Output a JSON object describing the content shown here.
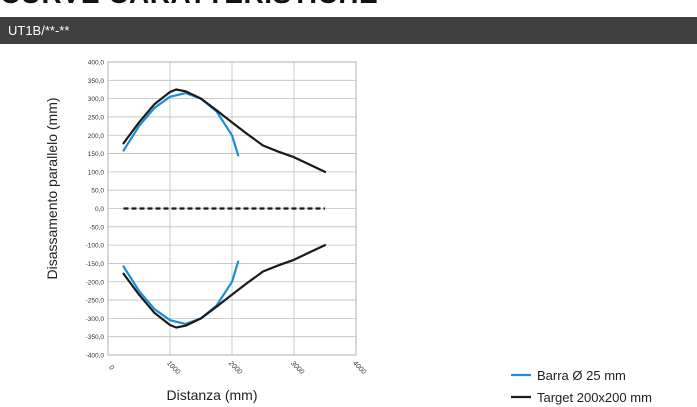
{
  "page_heading": "CURVE CARATTERISTICHE",
  "section_title": "UT1B/**-**",
  "colors": {
    "bar": "#3f3f3f",
    "series_rod": "#1a8fd1",
    "series_target": "#1a1a1a",
    "grid": "#bfbfbf"
  },
  "chart_data": {
    "type": "line",
    "xlabel": "Distanza (mm)",
    "ylabel": "Disassamento parallelo (mm)",
    "xlim": [
      0,
      4000
    ],
    "ylim": [
      -400,
      400
    ],
    "xticks": [
      0,
      1000,
      2000,
      3000,
      4000
    ],
    "yticks": [
      400,
      350,
      300,
      250,
      200,
      150,
      100,
      50,
      0,
      -50,
      -100,
      -150,
      -200,
      -250,
      -300,
      -350,
      -400
    ],
    "ytick_labels": [
      "400,0",
      "350,0",
      "300,0",
      "250,0",
      "200,0",
      "150,0",
      "100,0",
      "50,0",
      "0,0",
      "-50,0",
      "-100,0",
      "-150,0",
      "-200,0",
      "-250,0",
      "-300,0",
      "-350,0",
      "-400,0"
    ],
    "grid": true,
    "legend_position": "bottom-right",
    "series": [
      {
        "name": "Barra Ø 25 mm",
        "color": "#1a8fd1",
        "segments": [
          {
            "x": [
              250,
              500,
              750,
              1000,
              1250,
              1500,
              1750,
              2000,
              2100
            ],
            "y": [
              158,
              225,
              275,
              305,
              315,
              300,
              265,
              200,
              145
            ]
          },
          {
            "x": [
              250,
              500,
              750,
              1000,
              1250,
              1500,
              1750,
              2000,
              2100
            ],
            "y": [
              -158,
              -225,
              -275,
              -305,
              -315,
              -300,
              -265,
              -200,
              -145
            ]
          }
        ]
      },
      {
        "name": "Target 200x200 mm",
        "color": "#1a1a1a",
        "segments": [
          {
            "x": [
              250,
              500,
              750,
              1000,
              1100,
              1250,
              1500,
              1750,
              2000,
              2250,
              2500,
              2750,
              3000,
              3250,
              3500
            ],
            "y": [
              178,
              235,
              285,
              318,
              325,
              320,
              300,
              268,
              235,
              203,
              172,
              155,
              140,
              120,
              100
            ]
          },
          {
            "x": [
              250,
              500,
              750,
              1000,
              1100,
              1250,
              1500,
              1750,
              2000,
              2250,
              2500,
              2750,
              3000,
              3250,
              3500
            ],
            "y": [
              -178,
              -235,
              -285,
              -318,
              -325,
              -320,
              -300,
              -268,
              -235,
              -203,
              -172,
              -155,
              -140,
              -120,
              -100
            ]
          },
          {
            "x": [
              250,
              3500
            ],
            "y": [
              0,
              0
            ],
            "dashed": true
          }
        ]
      }
    ]
  }
}
